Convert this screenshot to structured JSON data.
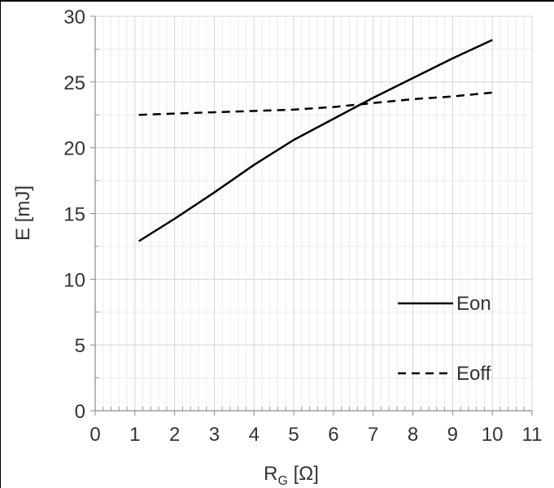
{
  "chart_data": {
    "type": "line",
    "title": "",
    "xlabel": "R",
    "xlabel_sub": "G",
    "xlabel_unit": " [Ω]",
    "ylabel": "E [mJ]",
    "xlim": [
      0,
      11
    ],
    "ylim": [
      0,
      30
    ],
    "x_ticks": [
      "0",
      "1",
      "2",
      "3",
      "4",
      "5",
      "6",
      "7",
      "8",
      "9",
      "10",
      "11"
    ],
    "y_ticks": [
      "0",
      "5",
      "10",
      "15",
      "20",
      "25",
      "30"
    ],
    "grid": true,
    "legend_position": "lower-right",
    "series": [
      {
        "name": "Eon",
        "style": "solid",
        "color": "#000000",
        "x": [
          1.1,
          2,
          3,
          4,
          5,
          6,
          7,
          8,
          9,
          10
        ],
        "y": [
          12.9,
          14.6,
          16.6,
          18.7,
          20.6,
          22.2,
          23.8,
          25.3,
          26.8,
          28.2
        ]
      },
      {
        "name": "Eoff",
        "style": "dashed",
        "color": "#000000",
        "x": [
          1.1,
          2,
          3,
          4,
          5,
          6,
          7,
          8,
          9,
          10
        ],
        "y": [
          22.5,
          22.6,
          22.7,
          22.8,
          22.9,
          23.1,
          23.4,
          23.7,
          23.9,
          24.2
        ]
      }
    ]
  }
}
